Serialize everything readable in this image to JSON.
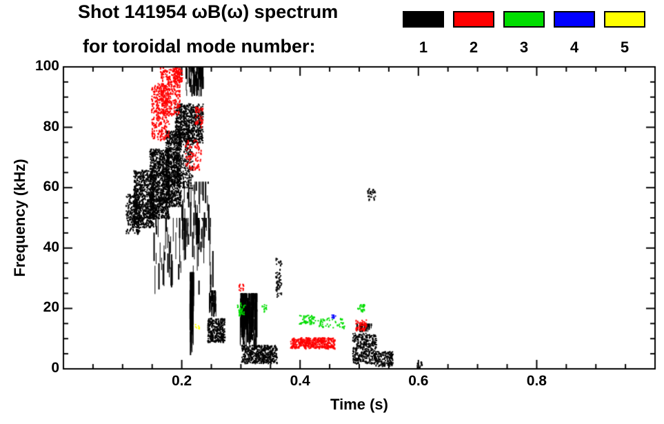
{
  "title": {
    "line1": "Shot 141954 ωB(ω) spectrum",
    "line2": "for toroidal mode number:"
  },
  "legend": {
    "entries": [
      {
        "label": "1",
        "color": "#000000"
      },
      {
        "label": "2",
        "color": "#ff0000"
      },
      {
        "label": "3",
        "color": "#00dd00"
      },
      {
        "label": "4",
        "color": "#0000ff"
      },
      {
        "label": "5",
        "color": "#ffff00"
      }
    ]
  },
  "chart_data": {
    "type": "scatter",
    "title": "Shot 141954 ωB(ω) spectrum for toroidal mode number: 1 2 3 4 5",
    "xlabel": "Time (s)",
    "ylabel": "Frequency (kHz)",
    "xlim": [
      0.0,
      1.0
    ],
    "ylim": [
      0,
      100
    ],
    "x_major_ticks": [
      0.2,
      0.4,
      0.6,
      0.8
    ],
    "x_tick_labels": [
      "0.2",
      "0.4",
      "0.6",
      "0.8"
    ],
    "x_minor_step": 0.05,
    "y_major_ticks": [
      0,
      20,
      40,
      60,
      80,
      100
    ],
    "y_tick_labels": [
      "0",
      "20",
      "40",
      "60",
      "80",
      "100"
    ],
    "y_minor_step": 5,
    "grid": false,
    "legend_position": "top-right",
    "point_units": {
      "t": "s",
      "f": "kHz"
    },
    "series": [
      {
        "name": "toroidal mode n=1",
        "color": "#000000",
        "clusters": [
          [
            0.105,
            0.128,
            45,
            58,
            220,
            "d"
          ],
          [
            0.118,
            0.152,
            47,
            66,
            700,
            "d"
          ],
          [
            0.145,
            0.178,
            50,
            73,
            950,
            "d"
          ],
          [
            0.172,
            0.198,
            54,
            79,
            750,
            "d"
          ],
          [
            0.19,
            0.218,
            60,
            82,
            260,
            "d"
          ],
          [
            0.188,
            0.235,
            75,
            88,
            600,
            "d"
          ],
          [
            0.205,
            0.235,
            90,
            100,
            60,
            "v"
          ],
          [
            0.152,
            0.252,
            24,
            50,
            70,
            "v"
          ],
          [
            0.198,
            0.245,
            40,
            62,
            40,
            "v"
          ],
          [
            0.213,
            0.219,
            4,
            32,
            45,
            "v"
          ],
          [
            0.243,
            0.272,
            9,
            17,
            300,
            "d"
          ],
          [
            0.246,
            0.258,
            17,
            26,
            25,
            "v"
          ],
          [
            0.298,
            0.326,
            6,
            25,
            160,
            "v"
          ],
          [
            0.3,
            0.36,
            2,
            8,
            450,
            "d"
          ],
          [
            0.358,
            0.368,
            24,
            37,
            60,
            "d"
          ],
          [
            0.488,
            0.528,
            2,
            12,
            350,
            "d"
          ],
          [
            0.495,
            0.52,
            12,
            15,
            35,
            "v"
          ],
          [
            0.524,
            0.556,
            1,
            6,
            150,
            "d"
          ],
          [
            0.513,
            0.526,
            56,
            60,
            30,
            "d"
          ],
          [
            0.596,
            0.606,
            0.5,
            2.5,
            15,
            "d"
          ]
        ]
      },
      {
        "name": "toroidal mode n=2",
        "color": "#ff0000",
        "clusters": [
          [
            0.148,
            0.178,
            76,
            95,
            280,
            "d"
          ],
          [
            0.163,
            0.196,
            84,
            100,
            330,
            "d"
          ],
          [
            0.186,
            0.2,
            95,
            100,
            70,
            "d"
          ],
          [
            0.205,
            0.232,
            66,
            76,
            80,
            "d"
          ],
          [
            0.222,
            0.235,
            80,
            87,
            40,
            "d"
          ],
          [
            0.296,
            0.304,
            26,
            28.5,
            14,
            "d"
          ],
          [
            0.383,
            0.458,
            7,
            10.5,
            420,
            "d"
          ],
          [
            0.493,
            0.512,
            13,
            17,
            55,
            "d"
          ]
        ]
      },
      {
        "name": "toroidal mode n=3",
        "color": "#00dd00",
        "clusters": [
          [
            0.293,
            0.306,
            18,
            22,
            30,
            "d"
          ],
          [
            0.335,
            0.342,
            19,
            21.5,
            10,
            "d"
          ],
          [
            0.398,
            0.425,
            15,
            18,
            55,
            "d"
          ],
          [
            0.428,
            0.475,
            13.5,
            17,
            45,
            "d"
          ],
          [
            0.496,
            0.508,
            19,
            21.5,
            22,
            "d"
          ]
        ]
      },
      {
        "name": "toroidal mode n=4",
        "color": "#0000ff",
        "clusters": [
          [
            0.452,
            0.459,
            16.5,
            18.2,
            8,
            "d"
          ]
        ]
      },
      {
        "name": "toroidal mode n=5",
        "color": "#ffff00",
        "clusters": [
          [
            0.222,
            0.229,
            13.5,
            15,
            7,
            "d"
          ]
        ]
      }
    ]
  }
}
